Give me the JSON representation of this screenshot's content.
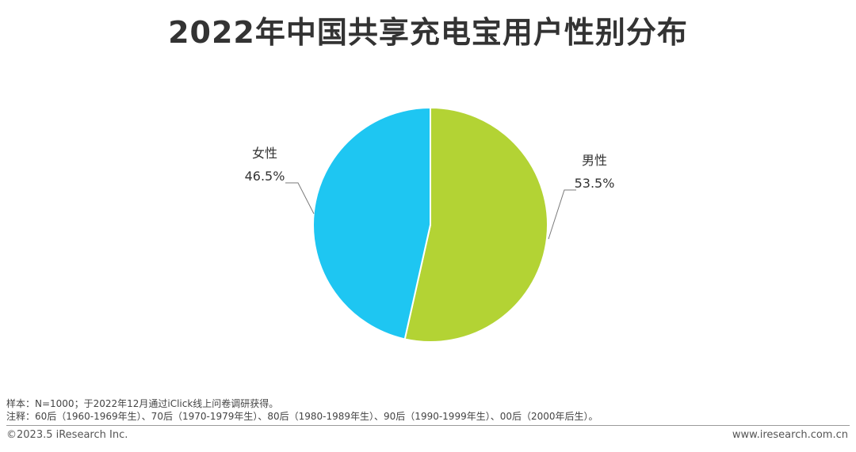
{
  "title": "2022年中国共享充电宝用户性别分布",
  "chart_data": {
    "type": "pie",
    "title": "2022年中国共享充电宝用户性别分布",
    "slices": [
      {
        "label": "男性",
        "value": 53.5,
        "value_label": "53.5%",
        "color": "#b3d334"
      },
      {
        "label": "女性",
        "value": 46.5,
        "value_label": "46.5%",
        "color": "#1ec6f2"
      }
    ],
    "start_angle": "12 o'clock",
    "direction": "clockwise"
  },
  "notes": {
    "sample": "样本：N=1000；于2022年12月通过iClick线上问卷调研获得。",
    "remark": "注释：60后（1960-1969年生）、70后（1970-1979年生）、80后（1980-1989年生）、90后（1990-1999年生）、00后（2000年后生）。"
  },
  "footer": {
    "copyright": "©2023.5 iResearch Inc.",
    "website": "www.iresearch.com.cn"
  }
}
